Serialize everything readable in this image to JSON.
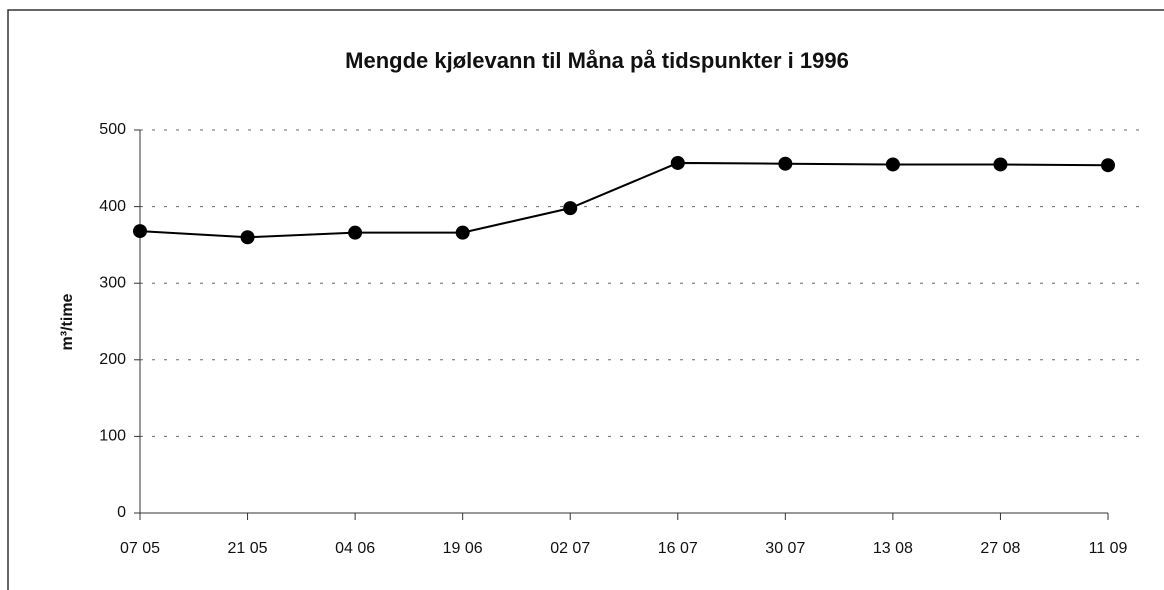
{
  "chart_data": {
    "type": "line",
    "title": "Mengde kjølevann til Måna på tidspunkter i 1996",
    "y_label": "m³/time",
    "categories": [
      "07 05",
      "21 05",
      "04 06",
      "19 06",
      "02 07",
      "16 07",
      "30 07",
      "13 08",
      "27 08",
      "11 09"
    ],
    "values": [
      368,
      360,
      366,
      366,
      398,
      457,
      456,
      455,
      455,
      454
    ],
    "color": "#000000",
    "ylim": [
      0,
      500
    ],
    "yticks": [
      0,
      100,
      200,
      300,
      400,
      500
    ],
    "grid": true
  }
}
